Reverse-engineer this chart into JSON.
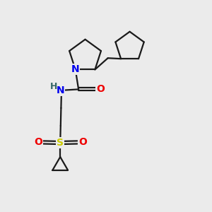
{
  "bg_color": "#ebebeb",
  "bond_color": "#1a1a1a",
  "N_color": "#0000ee",
  "O_color": "#ee0000",
  "S_color": "#cccc00",
  "line_width": 1.6,
  "font_size_atoms": 10,
  "xlim": [
    0,
    10
  ],
  "ylim": [
    0,
    10
  ]
}
